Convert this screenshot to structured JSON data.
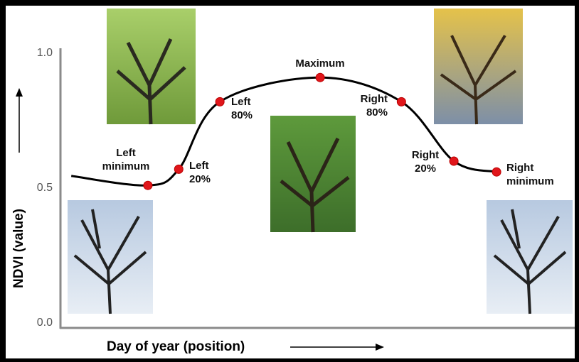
{
  "chart_data": {
    "type": "line",
    "x_label": "Day of year (position)",
    "y_label": "NDVI (value)",
    "x": [
      2.1,
      17.0,
      23.0,
      31.0,
      50.5,
      66.3,
      76.5,
      84.8
    ],
    "xlim": [
      0,
      100
    ],
    "series": [
      {
        "color": "#000000",
        "marker_color": "#e0161b",
        "values": [
          0.545,
          0.51,
          0.57,
          0.82,
          0.91,
          0.82,
          0.6,
          0.56
        ],
        "point_labels": [
          null,
          "Left\nminimum",
          "Left\n20%",
          "Left\n80%",
          "Maximum",
          "Right\n80%",
          "Right\n20%",
          "Right\nminimum"
        ]
      }
    ],
    "ylim": [
      0,
      1.0
    ],
    "yticks": [
      {
        "value": 0,
        "label": "0.0"
      },
      0.5,
      {
        "value": 1,
        "label": "1.0"
      }
    ],
    "grid": false
  }
}
